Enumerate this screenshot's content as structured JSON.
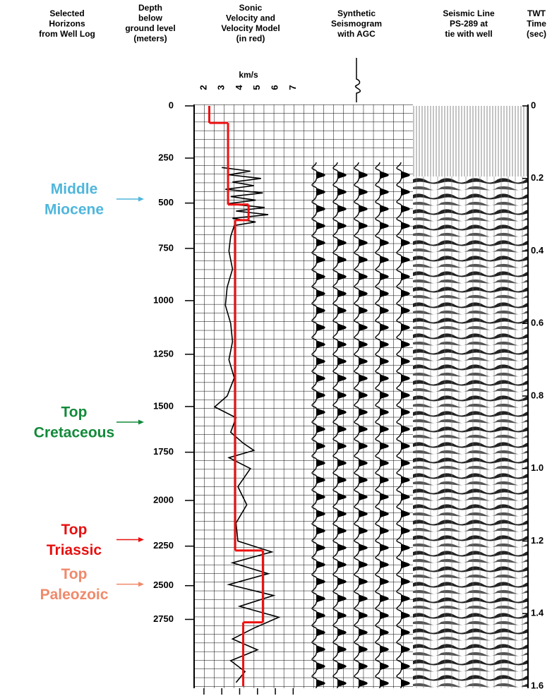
{
  "chart_data": {
    "type": "welllog",
    "headers": [
      {
        "lines": [
          "Selected",
          "Horizons",
          "from Well Log"
        ]
      },
      {
        "lines": [
          "Depth",
          "below",
          "ground level",
          "(meters)"
        ]
      },
      {
        "lines": [
          "Sonic",
          "Velocity and",
          "Velocity Model",
          "(in red)"
        ]
      },
      {
        "lines": [
          "Synthetic",
          "Seismogram",
          "with AGC"
        ]
      },
      {
        "lines": [
          "Seismic Line",
          "PS-289 at",
          "tie with well"
        ]
      },
      {
        "lines": [
          "TWT",
          "Time",
          "(sec)"
        ]
      }
    ],
    "velocity_unit": "km/s",
    "xlim": [
      1.45,
      7.5
    ],
    "xticks": [
      2,
      3,
      4,
      5,
      6,
      7
    ],
    "ylim": [
      0,
      1.6
    ],
    "yticks": [
      0,
      0.2,
      0.4,
      0.6,
      0.8,
      {
        "value": 1,
        "label": "1.0"
      },
      1.2,
      1.4,
      1.6
    ],
    "time_depth": {
      "depth": [
        0,
        250,
        500,
        750,
        1000,
        1250,
        1500,
        1750,
        2000,
        2250,
        2500,
        2750
      ],
      "twt": [
        0,
        0.144,
        0.268,
        0.393,
        0.537,
        0.685,
        0.829,
        0.955,
        1.088,
        1.214,
        1.323,
        1.416
      ]
    },
    "depth_ticks": [
      0,
      250,
      500,
      750,
      1000,
      1250,
      1500,
      1750,
      2000,
      2250,
      2500,
      2750
    ],
    "velocity_model": {
      "color": "#ee1111",
      "twt_bounds": [
        0,
        0.047,
        0.272,
        0.315,
        1.226,
        1.424,
        1.6
      ],
      "velocity": [
        2.3,
        3.35,
        4.5,
        3.75,
        5.3,
        4.2
      ]
    },
    "sonic": {
      "color": "#000000",
      "twt": [
        0.17,
        0.18,
        0.19,
        0.2,
        0.21,
        0.22,
        0.23,
        0.24,
        0.25,
        0.26,
        0.27,
        0.28,
        0.29,
        0.3,
        0.31,
        0.32,
        0.33,
        0.36,
        0.4,
        0.45,
        0.5,
        0.55,
        0.6,
        0.65,
        0.7,
        0.75,
        0.8,
        0.83,
        0.86,
        0.9,
        0.93,
        0.95,
        0.97,
        1.0,
        1.05,
        1.1,
        1.15,
        1.2,
        1.23,
        1.26,
        1.29,
        1.32,
        1.35,
        1.38,
        1.41,
        1.44,
        1.47,
        1.5,
        1.53,
        1.56,
        1.59
      ],
      "velocity": [
        3.0,
        4.6,
        3.4,
        5.2,
        3.6,
        4.8,
        3.2,
        5.3,
        3.5,
        4.9,
        3.3,
        5.4,
        3.8,
        5.6,
        3.6,
        4.9,
        3.7,
        3.5,
        3.4,
        3.6,
        3.3,
        3.2,
        3.5,
        3.6,
        3.4,
        3.7,
        3.3,
        2.6,
        3.8,
        3.5,
        4.2,
        4.8,
        3.4,
        4.6,
        3.9,
        4.4,
        3.8,
        3.9,
        5.8,
        3.6,
        5.6,
        3.4,
        5.9,
        4.0,
        6.2,
        4.8,
        3.6,
        5.0,
        3.5,
        4.3,
        3.8
      ]
    },
    "horizons": [
      {
        "lines": [
          "Middle",
          "Miocene"
        ],
        "color": "#4fb6dc",
        "twt": 0.257
      },
      {
        "lines": [
          "Top",
          "Cretaceous"
        ],
        "color": "#138a3a",
        "twt": 0.872
      },
      {
        "lines": [
          "Top",
          "Triassic"
        ],
        "color": "#e81010",
        "twt": 1.196
      },
      {
        "lines": [
          "Top",
          "Paleozoic"
        ],
        "color": "#f0896a",
        "twt": 1.319
      }
    ]
  }
}
